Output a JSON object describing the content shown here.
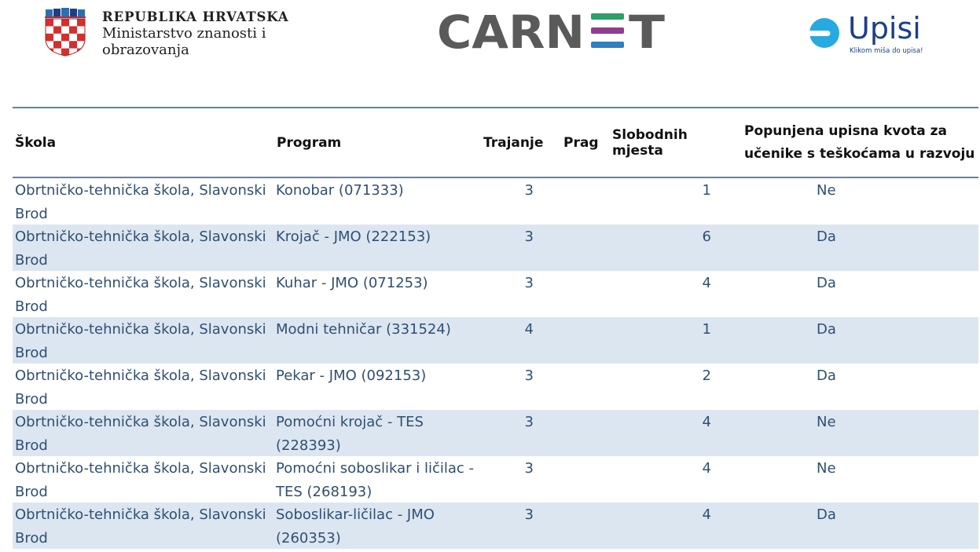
{
  "header": {
    "ministry_line1": "REPUBLIKA HRVATSKA",
    "ministry_line2": "Ministarstvo znanosti i",
    "ministry_line3": "obrazovanja",
    "carnet_logo_text": "CARNET",
    "upisi_logo_text": "Upisi",
    "upisi_tagline": "Klikom miša do upisa!"
  },
  "colors": {
    "table_border": "#5b84b5",
    "row_stripe": "#dce6f1",
    "cell_text": "#2f4f74"
  },
  "table": {
    "columns": [
      "Škola",
      "Program",
      "Trajanje",
      "Prag",
      "Slobodnih mjesta",
      "Popunjena upisna kvota za učenike s teškoćama u razvoju"
    ],
    "rows": [
      {
        "school": "Obrtničko-tehnička škola, Slavonski Brod",
        "program": "Konobar (071333)",
        "trajanje": "3",
        "prag": "",
        "slobodnih": "1",
        "kvota": "Ne"
      },
      {
        "school": "Obrtničko-tehnička škola, Slavonski Brod",
        "program": "Krojač - JMO (222153)",
        "trajanje": "3",
        "prag": "",
        "slobodnih": "6",
        "kvota": "Da"
      },
      {
        "school": "Obrtničko-tehnička škola, Slavonski Brod",
        "program": "Kuhar - JMO (071253)",
        "trajanje": "3",
        "prag": "",
        "slobodnih": "4",
        "kvota": "Da"
      },
      {
        "school": "Obrtničko-tehnička škola, Slavonski Brod",
        "program": "Modni tehničar (331524)",
        "trajanje": "4",
        "prag": "",
        "slobodnih": "1",
        "kvota": "Da"
      },
      {
        "school": "Obrtničko-tehnička škola, Slavonski Brod",
        "program": "Pekar - JMO (092153)",
        "trajanje": "3",
        "prag": "",
        "slobodnih": "2",
        "kvota": "Da"
      },
      {
        "school": "Obrtničko-tehnička škola, Slavonski Brod",
        "program": "Pomoćni krojač - TES (228393)",
        "trajanje": "3",
        "prag": "",
        "slobodnih": "4",
        "kvota": "Ne"
      },
      {
        "school": "Obrtničko-tehnička škola, Slavonski Brod",
        "program": "Pomoćni soboslikar i ličilac - TES (268193)",
        "trajanje": "3",
        "prag": "",
        "slobodnih": "4",
        "kvota": "Ne"
      },
      {
        "school": "Obrtničko-tehnička škola, Slavonski Brod",
        "program": "Soboslikar-ličilac - JMO (260353)",
        "trajanje": "3",
        "prag": "",
        "slobodnih": "4",
        "kvota": "Da"
      }
    ]
  }
}
